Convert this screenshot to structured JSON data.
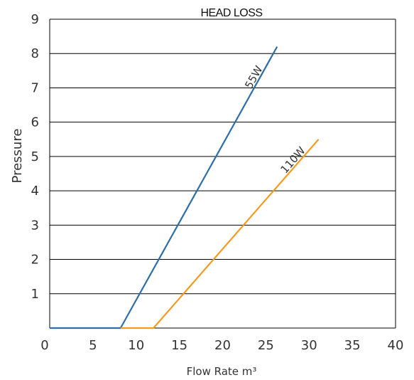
{
  "chart_data": {
    "type": "line",
    "title": "HEAD LOSS",
    "xlabel": "Flow Rate m³",
    "ylabel": "Pressure",
    "xlim": [
      0,
      40
    ],
    "ylim": [
      0,
      9
    ],
    "x_ticks": [
      "0",
      "5",
      "10",
      "15",
      "20",
      "25",
      "30",
      "35",
      "40"
    ],
    "y_ticks": [
      "1",
      "2",
      "3",
      "4",
      "5",
      "6",
      "7",
      "8",
      "9"
    ],
    "grid": "horizontal",
    "series": [
      {
        "name": "55W",
        "color": "#2e6ea8",
        "points": [
          [
            0,
            0
          ],
          [
            8.2,
            0
          ],
          [
            26.3,
            8.2
          ]
        ]
      },
      {
        "name": "110W",
        "color": "#f59a1e",
        "points": [
          [
            8.2,
            0
          ],
          [
            12.0,
            0
          ],
          [
            31.1,
            5.5
          ]
        ]
      }
    ]
  }
}
